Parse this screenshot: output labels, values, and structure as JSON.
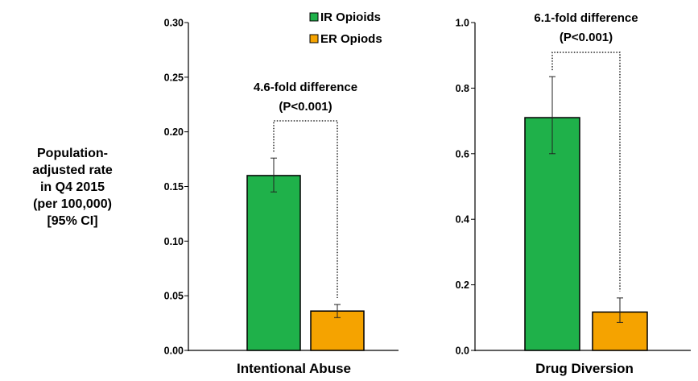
{
  "colors": {
    "ir": "#1fb14a",
    "er": "#f5a300"
  },
  "chart_data": {
    "ylabel_lines": [
      "Population-",
      "adjusted rate",
      "in Q4 2015",
      "(per 100,000)",
      "[95% CI]"
    ],
    "legend": [
      "IR Opioids",
      "ER Opiods"
    ],
    "panels": [
      {
        "type": "bar",
        "category": "Intentional Abuse",
        "ylim": [
          0,
          0.3
        ],
        "ticks": [
          "0.00",
          "0.05",
          "0.10",
          "0.15",
          "0.20",
          "0.25",
          "0.30"
        ],
        "series": [
          {
            "name": "IR Opioids",
            "value": 0.16,
            "ci": [
              0.145,
              0.176
            ]
          },
          {
            "name": "ER Opiods",
            "value": 0.036,
            "ci": [
              0.03,
              0.042
            ]
          }
        ],
        "annotation": [
          "4.6-fold difference",
          "(P<0.001)"
        ]
      },
      {
        "type": "bar",
        "category": "Drug Diversion",
        "ylim": [
          0,
          1.0
        ],
        "ticks": [
          "0.0",
          "0.2",
          "0.4",
          "0.6",
          "0.8",
          "1.0"
        ],
        "series": [
          {
            "name": "IR Opioids",
            "value": 0.71,
            "ci": [
              0.6,
              0.835
            ]
          },
          {
            "name": "ER Opiods",
            "value": 0.117,
            "ci": [
              0.085,
              0.16
            ]
          }
        ],
        "annotation": [
          "6.1-fold difference",
          "(P<0.001)"
        ]
      }
    ]
  }
}
